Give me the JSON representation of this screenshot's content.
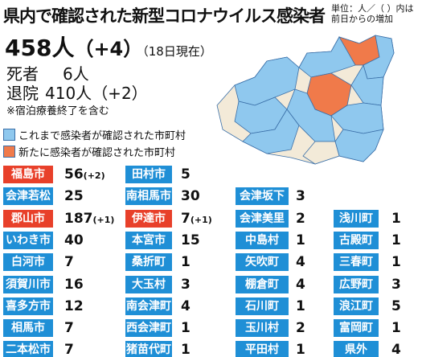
{
  "header": {
    "title": "県内で確認された新型コロナウイルス感染者",
    "unit_note": [
      "単位：人／（ ）内は",
      "前日からの増加"
    ]
  },
  "summary": {
    "total": "458人",
    "total_increase": "（+4）",
    "date": "（18日現在）",
    "deaths_label": "死者",
    "deaths": "6人",
    "discharged_label": "退院",
    "discharged": "410人",
    "discharged_increase": "（+2）",
    "note": "※宿泊療養終了を含む"
  },
  "legend": [
    {
      "label": "これまで感染者が確認された市町村",
      "color": "#8fc8ee"
    },
    {
      "label": "新たに感染者が確認された市町村",
      "color": "#f07a4a"
    }
  ],
  "colors": {
    "existing": "#1f8fd6",
    "new": "#e8402a"
  },
  "table": {
    "columns": [
      [
        {
          "name": "福島市",
          "count": 56,
          "increase": "(+2)",
          "new": true
        },
        {
          "name": "会津若松市",
          "count": 25,
          "new": false
        },
        {
          "name": "郡山市",
          "count": 187,
          "increase": "(+1)",
          "new": true
        },
        {
          "name": "いわき市",
          "count": 40,
          "new": false
        },
        {
          "name": "白河市",
          "count": 7,
          "new": false
        },
        {
          "name": "須賀川市",
          "count": 16,
          "new": false
        },
        {
          "name": "喜多方市",
          "count": 12,
          "new": false
        },
        {
          "name": "相馬市",
          "count": 7,
          "new": false
        },
        {
          "name": "二本松市",
          "count": 7,
          "new": false
        }
      ],
      [
        {
          "name": "田村市",
          "count": 5,
          "new": false
        },
        {
          "name": "南相馬市",
          "count": 30,
          "new": false
        },
        {
          "name": "伊達市",
          "count": 7,
          "increase": "(+1)",
          "new": true
        },
        {
          "name": "本宮市",
          "count": 15,
          "new": false
        },
        {
          "name": "桑折町",
          "count": 1,
          "new": false
        },
        {
          "name": "大玉村",
          "count": 3,
          "new": false
        },
        {
          "name": "南会津町",
          "count": 4,
          "new": false
        },
        {
          "name": "西会津町",
          "count": 1,
          "new": false
        },
        {
          "name": "猪苗代町",
          "count": 1,
          "new": false
        }
      ],
      [
        {
          "name": "会津坂下町",
          "count": 3,
          "new": false
        },
        {
          "name": "会津美里町",
          "count": 2,
          "new": false
        },
        {
          "name": "中島村",
          "count": 1,
          "new": false
        },
        {
          "name": "矢吹町",
          "count": 4,
          "new": false
        },
        {
          "name": "棚倉町",
          "count": 4,
          "new": false
        },
        {
          "name": "石川町",
          "count": 1,
          "new": false
        },
        {
          "name": "玉川村",
          "count": 2,
          "new": false
        },
        {
          "name": "平田村",
          "count": 1,
          "new": false
        }
      ],
      [
        {
          "name": "浅川町",
          "count": 1,
          "new": false
        },
        {
          "name": "古殿町",
          "count": 1,
          "new": false
        },
        {
          "name": "三春町",
          "count": 1,
          "new": false
        },
        {
          "name": "広野町",
          "count": 3,
          "new": false
        },
        {
          "name": "浪江町",
          "count": 5,
          "new": false
        },
        {
          "name": "富岡町",
          "count": 1,
          "new": false
        },
        {
          "name": "県外",
          "count": 4,
          "new": false
        }
      ]
    ]
  }
}
